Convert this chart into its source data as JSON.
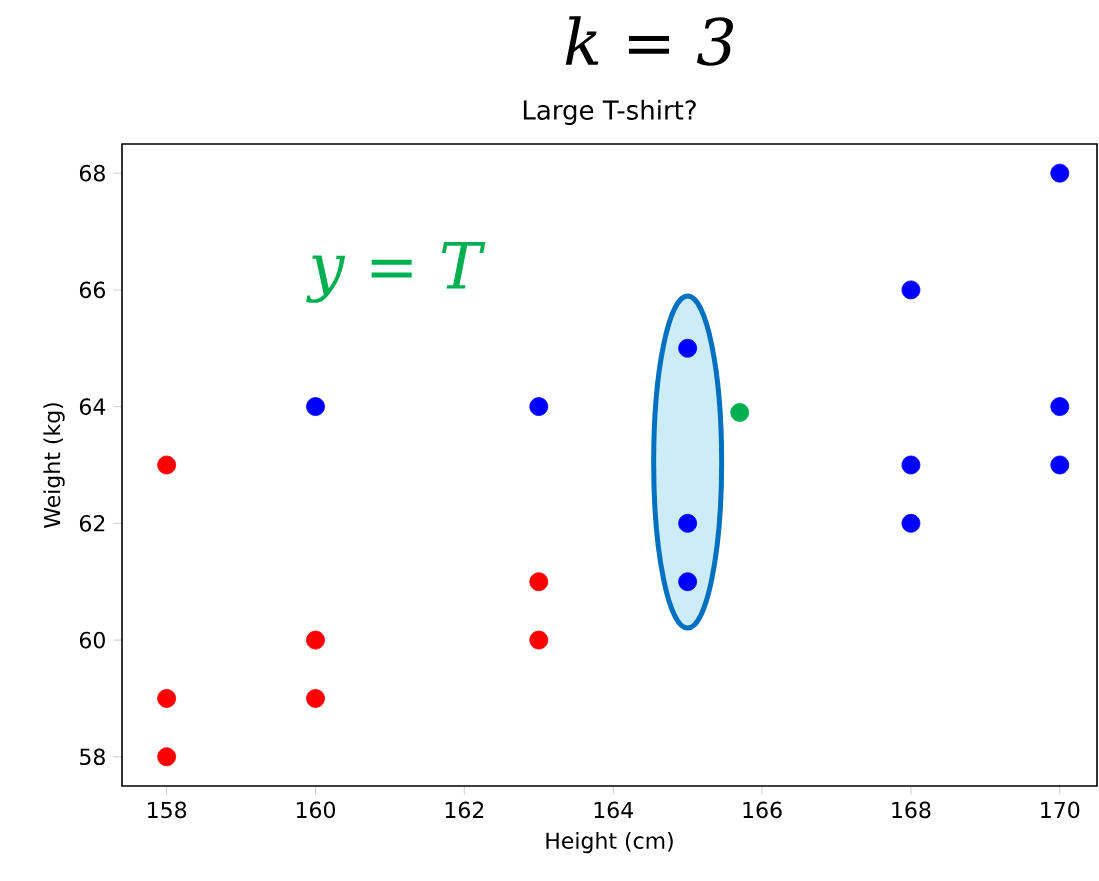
{
  "chart_data": {
    "type": "scatter",
    "title": "k = 3",
    "subtitle": "Large T-shirt?",
    "xlabel": "Height (cm)",
    "ylabel": "Weight (kg)",
    "series": [
      {
        "color": "#ff0000",
        "x": [
          158,
          158,
          158,
          160,
          160,
          163,
          163
        ],
        "values": [
          63,
          59,
          58,
          60,
          59,
          61,
          60
        ]
      },
      {
        "color": "#0000ff",
        "x": [
          160,
          163,
          165,
          165,
          165,
          168,
          168,
          168,
          170,
          170,
          170
        ],
        "values": [
          64,
          64,
          65,
          62,
          61,
          66,
          63,
          62,
          68,
          64,
          63
        ]
      },
      {
        "color": "#00b050",
        "x": [
          165.7
        ],
        "values": [
          63.9
        ]
      }
    ],
    "annotations": [
      "y = T"
    ],
    "xlim": [
      157.4,
      170.5
    ],
    "ylim": [
      57.5,
      68.5
    ],
    "xticks": [
      158,
      160,
      162,
      164,
      166,
      168,
      170
    ],
    "yticks": [
      58,
      60,
      62,
      64,
      66,
      68
    ],
    "marker": "circle",
    "grid": false
  }
}
